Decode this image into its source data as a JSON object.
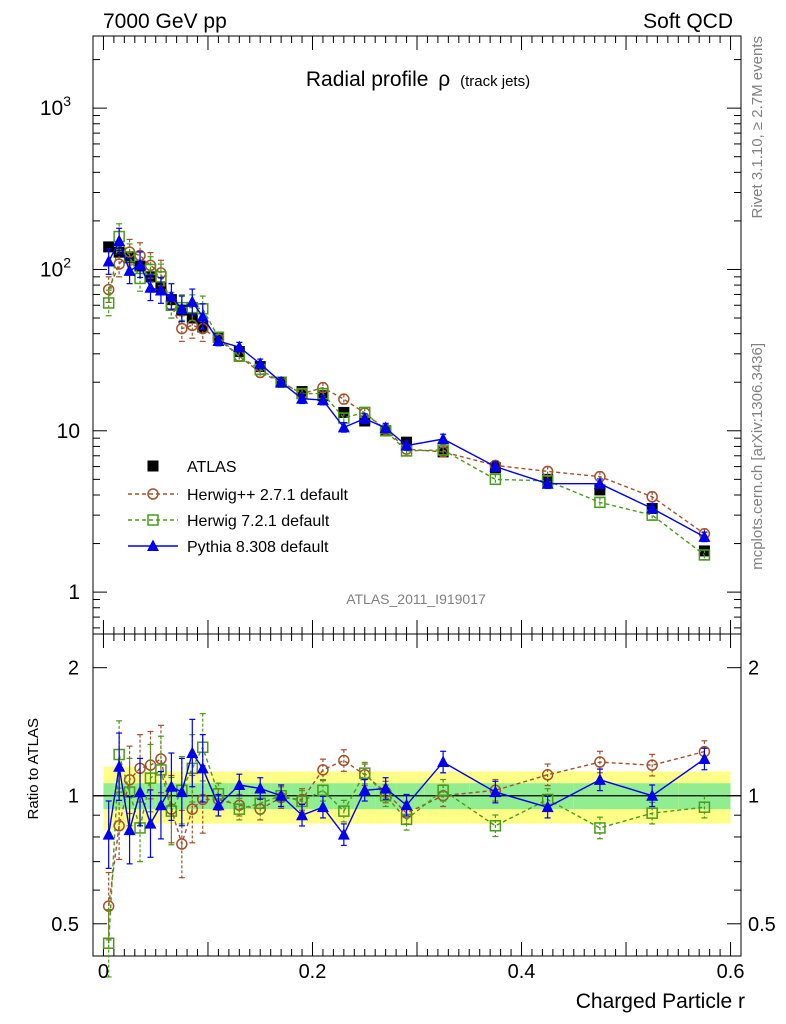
{
  "chart_data": [
    {
      "type": "line",
      "title": "Radial profile",
      "title_symbol": "ρ",
      "title_suffix": "(track jets)",
      "header_left": "7000 GeV pp",
      "header_right": "Soft QCD",
      "side_text_top": "Rivet 3.1.10, ≥ 2.7M events",
      "side_text_bottom": "mcplots.cern.ch [arXiv:1306.3436]",
      "watermark": "ATLAS_2011_I919017",
      "xlabel": "Charged Particle r",
      "yscale": "log",
      "xlim": [
        -0.01,
        0.61
      ],
      "ylim": [
        0.55,
        2800
      ],
      "y_ticks": [
        {
          "value": 1,
          "label": "1"
        },
        {
          "value": 10,
          "label": "10"
        },
        {
          "value": 100,
          "label": "10",
          "sup": "2"
        },
        {
          "value": 1000,
          "label": "10",
          "sup": "3"
        }
      ],
      "x_ticks": [
        {
          "value": 0,
          "label": "0"
        },
        {
          "value": 0.2,
          "label": "0.2"
        },
        {
          "value": 0.4,
          "label": "0.4"
        },
        {
          "value": 0.6,
          "label": "0.6"
        }
      ],
      "legend_position": "lower-left",
      "series": [
        {
          "name": "ATLAS",
          "marker": "square-filled",
          "color": "#000000",
          "x": [
            0.005,
            0.015,
            0.025,
            0.035,
            0.045,
            0.055,
            0.065,
            0.075,
            0.085,
            0.095,
            0.11,
            0.13,
            0.15,
            0.17,
            0.19,
            0.21,
            0.23,
            0.25,
            0.27,
            0.29,
            0.325,
            0.375,
            0.425,
            0.475,
            0.525,
            0.575
          ],
          "y": [
            138,
            128,
            118,
            105,
            90,
            78,
            65,
            56,
            50,
            44,
            38,
            31,
            25,
            20,
            17.5,
            16.5,
            13,
            11.5,
            10,
            8.5,
            7.4,
            5.9,
            5.0,
            4.3,
            3.3,
            1.8
          ]
        },
        {
          "name": "Herwig++ 2.7.1 default",
          "marker": "circle-open",
          "color": "#a0522d",
          "x": [
            0.005,
            0.015,
            0.025,
            0.035,
            0.045,
            0.055,
            0.065,
            0.075,
            0.085,
            0.095,
            0.11,
            0.13,
            0.15,
            0.17,
            0.19,
            0.21,
            0.23,
            0.25,
            0.27,
            0.29,
            0.325,
            0.375,
            0.425,
            0.475,
            0.525,
            0.575
          ],
          "y": [
            75,
            108,
            128,
            122,
            106,
            95,
            60,
            43,
            45,
            43,
            37,
            29,
            23,
            20,
            17,
            18.5,
            15.7,
            12.9,
            10.2,
            7.7,
            7.4,
            6.1,
            5.6,
            5.2,
            3.9,
            2.3
          ]
        },
        {
          "name": "Herwig 7.2.1 default",
          "marker": "square-open",
          "color": "#4a9a1c",
          "x": [
            0.005,
            0.015,
            0.025,
            0.035,
            0.045,
            0.055,
            0.065,
            0.075,
            0.085,
            0.095,
            0.11,
            0.13,
            0.15,
            0.17,
            0.19,
            0.21,
            0.23,
            0.25,
            0.27,
            0.29,
            0.325,
            0.375,
            0.425,
            0.475,
            0.525,
            0.575
          ],
          "y": [
            62,
            160,
            120,
            88,
            100,
            90,
            60,
            58,
            58,
            57,
            38,
            29,
            24,
            20,
            17,
            17,
            12,
            13,
            10,
            7.5,
            7.6,
            5.0,
            4.9,
            3.6,
            3.0,
            1.7
          ]
        },
        {
          "name": "Pythia 8.308 default",
          "marker": "triangle-filled",
          "color": "#0000ee",
          "x": [
            0.005,
            0.015,
            0.025,
            0.035,
            0.045,
            0.055,
            0.065,
            0.075,
            0.085,
            0.095,
            0.11,
            0.13,
            0.15,
            0.17,
            0.19,
            0.21,
            0.23,
            0.25,
            0.27,
            0.29,
            0.325,
            0.375,
            0.425,
            0.475,
            0.525,
            0.575
          ],
          "y": [
            112,
            150,
            98,
            107,
            77,
            74,
            68,
            57,
            63,
            51,
            36,
            33,
            26,
            20,
            15.8,
            15.5,
            10.5,
            11.9,
            10.4,
            8.1,
            8.9,
            6.0,
            4.7,
            4.7,
            3.3,
            2.2
          ]
        }
      ]
    },
    {
      "type": "line",
      "ylabel": "Ratio to ATLAS",
      "ylim": [
        0.42,
        2.4
      ],
      "y_ticks": [
        {
          "value": 0.5,
          "label": "0.5"
        },
        {
          "value": 1,
          "label": "1"
        },
        {
          "value": 2,
          "label": "2"
        }
      ],
      "band_green_halfwidth": 0.07,
      "band_yellow_halfwidth": 0.14,
      "series": [
        {
          "name": "Herwig++ 2.7.1 default",
          "y": [
            0.55,
            0.85,
            1.09,
            1.16,
            1.18,
            1.22,
            0.93,
            0.77,
            0.93,
            0.98,
            0.98,
            0.95,
            0.93,
            0.99,
            0.98,
            1.15,
            1.21,
            1.12,
            1.02,
            0.91,
            1.0,
            1.03,
            1.12,
            1.2,
            1.18,
            1.27
          ]
        },
        {
          "name": "Herwig 7.2.1 default",
          "y": [
            0.45,
            1.25,
            1.02,
            0.84,
            1.1,
            1.15,
            0.92,
            1.03,
            1.16,
            1.3,
            1.01,
            0.93,
            0.96,
            1.0,
            0.97,
            1.03,
            0.92,
            1.13,
            1.0,
            0.88,
            1.03,
            0.85,
            0.98,
            0.84,
            0.91,
            0.94
          ]
        },
        {
          "name": "Pythia 8.308 default",
          "y": [
            0.81,
            1.17,
            0.83,
            1.02,
            0.86,
            0.95,
            1.05,
            1.02,
            1.26,
            1.16,
            0.95,
            1.06,
            1.04,
            1.0,
            0.9,
            0.94,
            0.81,
            1.03,
            1.04,
            0.95,
            1.2,
            1.02,
            0.94,
            1.09,
            1.0,
            1.22
          ]
        }
      ]
    }
  ]
}
